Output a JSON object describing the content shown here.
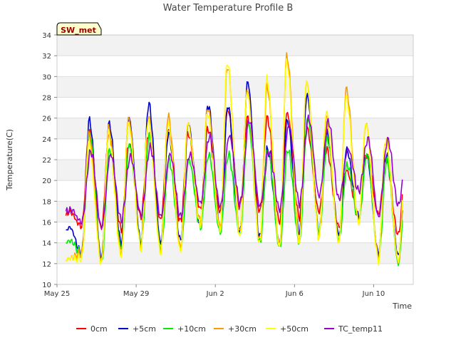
{
  "chart_data": {
    "type": "line",
    "title": "Water Temperature Profile B",
    "xlabel": "Time",
    "ylabel": "Temperature(C)",
    "ylim": [
      10,
      34
    ],
    "yticks": [
      10,
      12,
      14,
      16,
      18,
      20,
      22,
      24,
      26,
      28,
      30,
      32,
      34
    ],
    "xlim": [
      "2024-05-25",
      "2024-06-12"
    ],
    "xticks": [
      {
        "date": "2024-05-25",
        "label": "May 25"
      },
      {
        "date": "2024-05-29",
        "label": "May 29"
      },
      {
        "date": "2024-06-02",
        "label": "Jun 2"
      },
      {
        "date": "2024-06-06",
        "label": "Jun 6"
      },
      {
        "date": "2024-06-10",
        "label": "Jun 10"
      }
    ],
    "grid": true,
    "legend_position": "bottom",
    "annotation": "SW_met",
    "days": [
      "2024-05-25",
      "2024-05-26",
      "2024-05-27",
      "2024-05-28",
      "2024-05-29",
      "2024-05-30",
      "2024-05-31",
      "2024-06-01",
      "2024-06-02",
      "2024-06-03",
      "2024-06-04",
      "2024-06-05",
      "2024-06-06",
      "2024-06-07",
      "2024-06-08",
      "2024-06-09",
      "2024-06-10",
      "2024-06-11"
    ],
    "series": [
      {
        "name": "0cm",
        "color": "#ff0000",
        "min": [
          15.8,
          15.6,
          15.4,
          15.3,
          16.5,
          16.2,
          16.0,
          17.2,
          17.0,
          17.5,
          17.0,
          16.0,
          16.5,
          17.0,
          15.5,
          16.5,
          16.8,
          14.8
        ],
        "max": [
          17.0,
          24.5,
          24.5,
          23.5,
          24.5,
          25.0,
          24.5,
          25.0,
          26.8,
          26.0,
          26.0,
          26.5,
          25.0,
          23.0,
          21.0,
          22.5,
          22.0,
          21.5
        ]
      },
      {
        "name": "+5cm",
        "color": "#0000cc",
        "min": [
          14.5,
          13.0,
          12.5,
          14.0,
          14.0,
          14.0,
          14.2,
          15.5,
          15.5,
          15.0,
          14.5,
          14.0,
          15.0,
          15.0,
          14.8,
          16.5,
          13.0,
          12.8
        ],
        "max": [
          15.5,
          25.8,
          25.5,
          26.0,
          27.4,
          24.5,
          25.5,
          27.3,
          27.2,
          29.5,
          23.0,
          25.8,
          28.2,
          24.5,
          23.0,
          22.5,
          22.5,
          21.0
        ],
        "phase": 0.63
      },
      {
        "name": "+10cm",
        "color": "#00ee00",
        "min": [
          13.8,
          13.0,
          12.0,
          13.5,
          13.8,
          13.5,
          13.5,
          15.5,
          15.0,
          14.8,
          14.0,
          13.5,
          14.0,
          15.0,
          14.3,
          16.2,
          12.5,
          12.0
        ],
        "max": [
          14.2,
          24.5,
          23.0,
          23.5,
          24.3,
          22.0,
          22.0,
          22.5,
          22.5,
          25.5,
          23.0,
          23.0,
          26.0,
          24.0,
          21.5,
          22.5,
          22.0,
          21.0
        ],
        "phase": 0.66
      },
      {
        "name": "+30cm",
        "color": "#ff9900",
        "min": [
          12.0,
          13.0,
          12.2,
          13.0,
          13.5,
          13.2,
          13.5,
          16.0,
          15.5,
          15.0,
          14.2,
          13.8,
          14.2,
          14.5,
          14.0,
          16.0,
          12.5,
          12.2
        ],
        "max": [
          12.5,
          24.5,
          25.0,
          26.0,
          26.0,
          26.2,
          25.5,
          27.0,
          31.0,
          28.7,
          29.0,
          32.0,
          29.5,
          26.0,
          28.8,
          25.5,
          24.0,
          22.0
        ],
        "phase": 0.61
      },
      {
        "name": "+50cm",
        "color": "#ffff00",
        "min": [
          11.8,
          12.5,
          12.0,
          12.7,
          13.5,
          13.0,
          13.2,
          15.7,
          15.2,
          14.5,
          13.8,
          13.5,
          14.0,
          14.5,
          14.0,
          16.0,
          12.3,
          12.3
        ],
        "max": [
          12.5,
          23.5,
          24.5,
          25.5,
          25.8,
          25.5,
          25.5,
          26.5,
          31.4,
          28.5,
          29.8,
          31.4,
          29.5,
          26.5,
          28.0,
          25.5,
          24.0,
          22.0
        ],
        "phase": 0.6
      },
      {
        "name": "TC_temp11",
        "color": "#9900cc",
        "min": [
          16.8,
          16.0,
          15.5,
          16.2,
          16.7,
          16.5,
          16.5,
          17.8,
          17.5,
          17.8,
          17.5,
          17.2,
          17.8,
          18.5,
          18.2,
          19.0,
          16.5,
          17.6
        ],
        "max": [
          17.2,
          22.8,
          22.5,
          22.3,
          23.2,
          22.5,
          22.5,
          24.3,
          24.3,
          25.8,
          22.8,
          25.3,
          26.0,
          25.7,
          23.0,
          24.0,
          23.9,
          23.4
        ],
        "phase": 0.71
      }
    ]
  }
}
